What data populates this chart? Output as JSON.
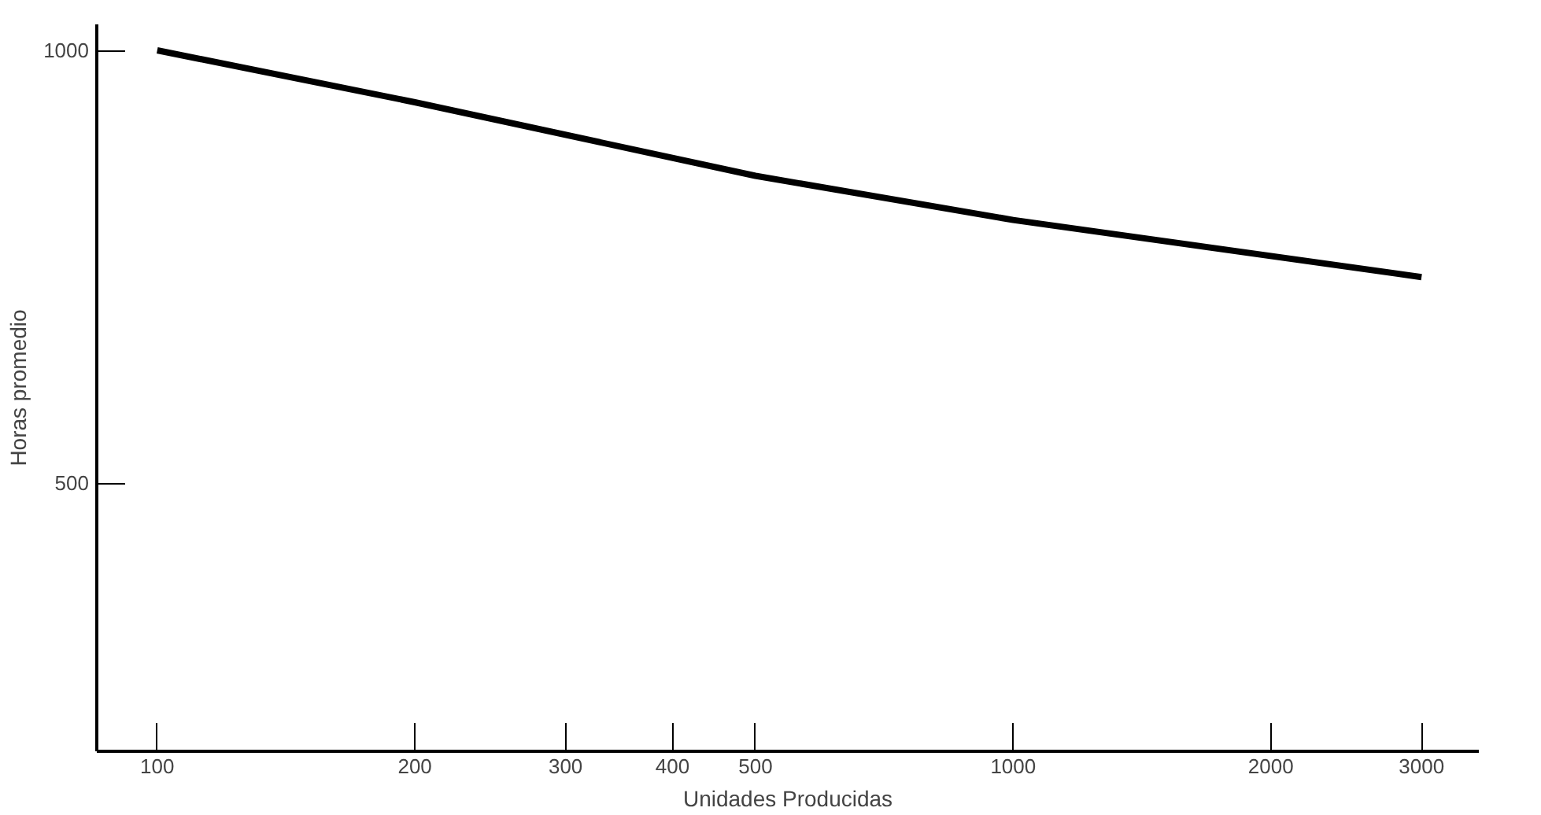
{
  "chart_data": {
    "type": "line",
    "xlabel": "Unidades Producidas",
    "ylabel": "Horas promedio",
    "x": [
      100,
      200,
      500,
      1000,
      3000
    ],
    "series": [
      {
        "color": "#000000",
        "values": [
          1000,
          940,
          855,
          804,
          738
        ]
      }
    ],
    "log": "x",
    "xlim": [
      85,
      3500
    ],
    "xticks": [
      100,
      200,
      300,
      400,
      500,
      1000,
      2000,
      3000
    ],
    "ylim": [
      190,
      1030
    ],
    "yticks": [
      500,
      1000
    ],
    "grid": false,
    "marker": "none",
    "line_style": "solid"
  }
}
